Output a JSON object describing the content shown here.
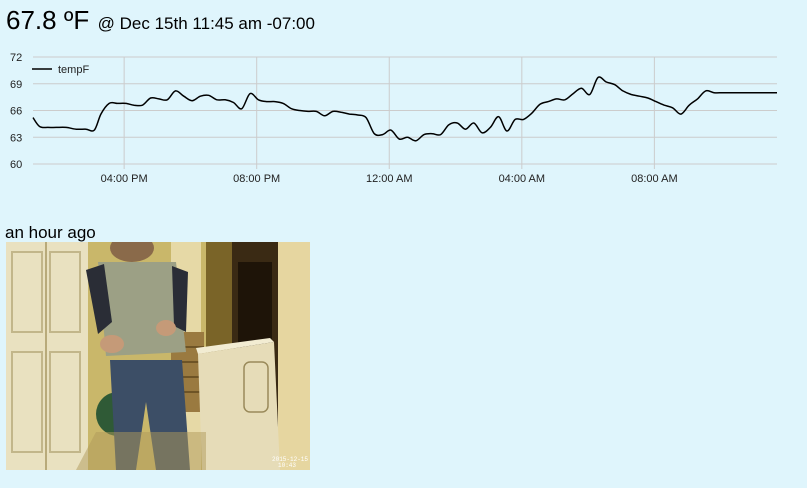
{
  "header": {
    "temperature": "67.8 ºF",
    "reading_time": "@ Dec 15th 11:45 am -07:00"
  },
  "chart_data": {
    "type": "line",
    "title": "",
    "xlabel": "",
    "ylabel": "",
    "ylim": [
      60,
      72
    ],
    "yticks": [
      60,
      63,
      66,
      69,
      72
    ],
    "xlim_hours_relative": [
      0,
      22.45
    ],
    "xticks": [
      {
        "label": "04:00 PM",
        "h": 2.75
      },
      {
        "label": "08:00 PM",
        "h": 6.75
      },
      {
        "label": "12:00 AM",
        "h": 10.75
      },
      {
        "label": "04:00 AM",
        "h": 14.75
      },
      {
        "label": "08:00 AM",
        "h": 18.75
      }
    ],
    "grid": true,
    "legend_position": "top-left",
    "series": [
      {
        "name": "tempF",
        "color": "#000000",
        "x_hours": [
          0.0,
          0.2,
          0.45,
          0.7,
          1.0,
          1.3,
          1.6,
          1.85,
          2.05,
          2.3,
          2.55,
          2.8,
          3.05,
          3.3,
          3.55,
          3.8,
          4.05,
          4.3,
          4.55,
          4.8,
          5.05,
          5.3,
          5.55,
          5.8,
          6.05,
          6.3,
          6.55,
          6.8,
          7.05,
          7.3,
          7.55,
          7.8,
          8.05,
          8.3,
          8.55,
          8.8,
          9.05,
          9.3,
          9.55,
          9.8,
          10.05,
          10.3,
          10.55,
          10.8,
          11.05,
          11.3,
          11.55,
          11.8,
          12.05,
          12.3,
          12.55,
          12.8,
          13.05,
          13.3,
          13.55,
          13.8,
          14.05,
          14.3,
          14.55,
          14.8,
          15.05,
          15.3,
          15.55,
          15.8,
          16.05,
          16.3,
          16.55,
          16.8,
          17.05,
          17.3,
          17.55,
          17.8,
          18.05,
          18.3,
          18.55,
          18.8,
          19.05,
          19.3,
          19.55,
          19.8,
          20.05,
          20.3,
          20.55,
          20.8,
          21.05,
          21.3,
          21.55,
          21.8,
          22.05,
          22.3,
          22.45
        ],
        "values": [
          65.2,
          64.2,
          64.1,
          64.1,
          64.1,
          63.9,
          63.9,
          63.8,
          65.6,
          66.8,
          66.8,
          66.8,
          66.6,
          66.6,
          67.4,
          67.3,
          67.2,
          68.2,
          67.6,
          67.1,
          67.6,
          67.7,
          67.2,
          67.2,
          66.9,
          66.2,
          67.9,
          67.2,
          67.0,
          67.0,
          66.8,
          66.2,
          66.0,
          65.9,
          65.9,
          65.4,
          65.9,
          65.8,
          65.6,
          65.5,
          65.2,
          63.4,
          63.3,
          63.8,
          62.8,
          63.0,
          62.6,
          63.3,
          63.4,
          63.3,
          64.4,
          64.6,
          63.9,
          64.6,
          63.5,
          64.1,
          65.3,
          63.7,
          65.0,
          65.0,
          65.7,
          66.7,
          67.0,
          67.3,
          67.2,
          67.9,
          68.5,
          67.8,
          69.7,
          69.2,
          68.9,
          68.2,
          67.8,
          67.6,
          67.4,
          67.0,
          66.6,
          66.3,
          65.6,
          66.6,
          67.3,
          68.2,
          68.0,
          68.0,
          68.0,
          68.0,
          68.0,
          68.0,
          68.0,
          68.0,
          68.0
        ]
      }
    ]
  },
  "snapshot": {
    "ago_label": "an hour ago",
    "timestamp_overlay": "2015-12-15 10:43"
  },
  "colors": {
    "background": "#dff5fc",
    "grid": "#cccccc",
    "line": "#000000",
    "text": "#222222"
  }
}
